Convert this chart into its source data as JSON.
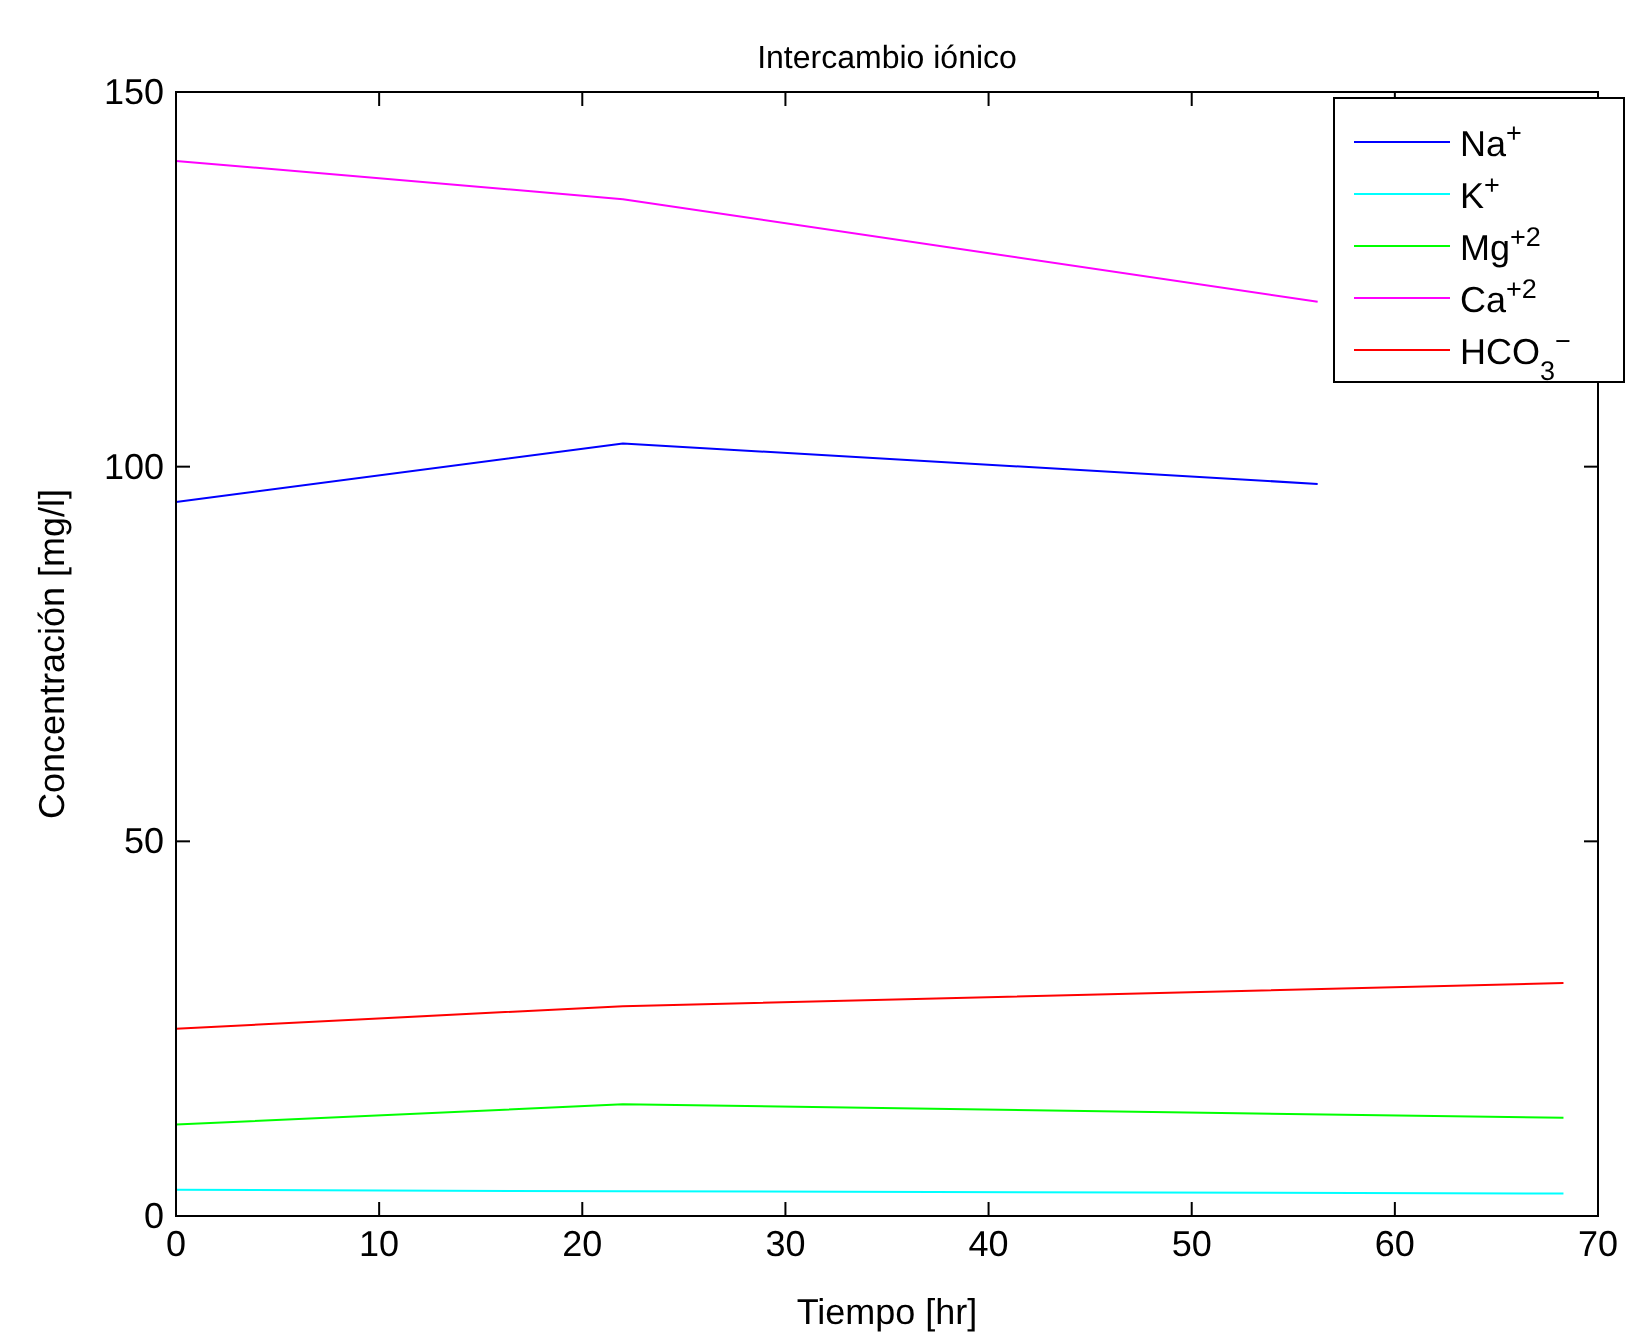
{
  "chart_data": {
    "type": "line",
    "title": "Intercambio iónico",
    "xlabel": "Tiempo [hr]",
    "ylabel": "Concentración [mg/l]",
    "xlim": [
      0,
      70
    ],
    "xticks": [
      0,
      10,
      20,
      30,
      40,
      50,
      60,
      70
    ],
    "ylim": [
      0,
      150
    ],
    "yticks": [
      0,
      50,
      100,
      150
    ],
    "legend": "top right",
    "grid": false,
    "series": [
      {
        "name": "Na$^{+}$",
        "color": "#0000ff",
        "x": [
          0,
          22,
          56.2
        ],
        "values": [
          95.3,
          103.1,
          97.7
        ]
      },
      {
        "name": "K$^{+}$",
        "color": "#00ffff",
        "x": [
          0,
          22,
          68.3
        ],
        "values": [
          3.5,
          3.3,
          3.0
        ]
      },
      {
        "name": "Mg$^{+2}$",
        "color": "#00ff00",
        "x": [
          0,
          22,
          68.3
        ],
        "values": [
          12.2,
          14.9,
          13.1
        ]
      },
      {
        "name": "Ca$^{+2}$",
        "color": "#ff00ff",
        "x": [
          0,
          22,
          56.2
        ],
        "values": [
          140.8,
          135.7,
          122.0
        ]
      },
      {
        "name": "HCO$_{3}$$^{−}$",
        "color": "#ff0000",
        "x": [
          0,
          22,
          68.3
        ],
        "values": [
          25.0,
          28.0,
          31.1
        ]
      }
    ]
  }
}
